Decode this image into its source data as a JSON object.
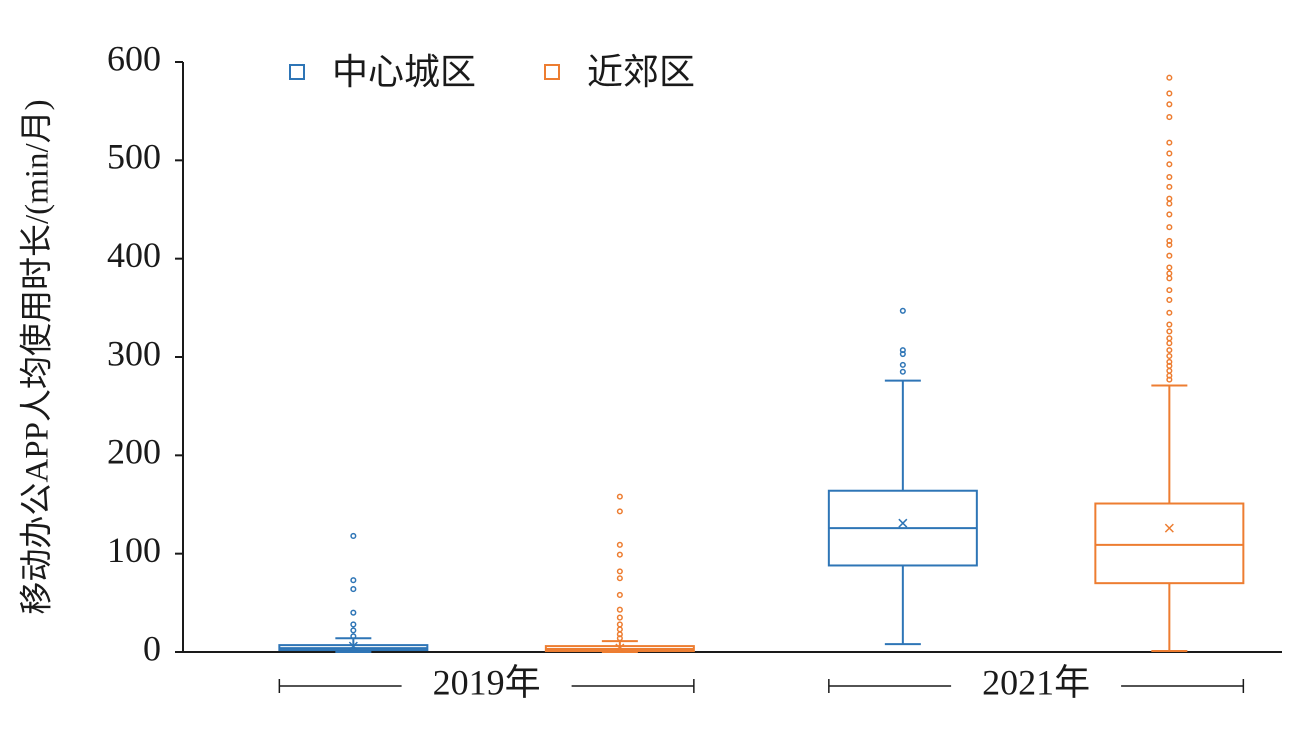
{
  "chart_data": {
    "type": "box",
    "y_label": "移动办公APP人均使用时长/(min/月)",
    "categories": [
      "2019年",
      "2021年"
    ],
    "ylim": [
      0,
      600
    ],
    "yticks": [
      0,
      100,
      200,
      300,
      400,
      500,
      600
    ],
    "legend": "top-left",
    "series": [
      {
        "name": "中心城区",
        "color": "#2e75b6",
        "boxes": [
          {
            "min": 0,
            "q1": 2,
            "median": 4,
            "q3": 7,
            "max": 14,
            "mean": 6,
            "outliers": [
              16,
              22,
              28,
              40,
              64,
              73,
              118
            ]
          },
          {
            "min": 8,
            "q1": 88,
            "median": 126,
            "q3": 164,
            "max": 276,
            "mean": 131,
            "outliers": [
              285,
              292,
              303,
              307,
              347
            ]
          }
        ]
      },
      {
        "name": "近郊区",
        "color": "#ed7d31",
        "boxes": [
          {
            "min": 0,
            "q1": 1,
            "median": 3,
            "q3": 6,
            "max": 11,
            "mean": 4,
            "outliers": [
              14,
              18,
              23,
              28,
              35,
              43,
              58,
              75,
              82,
              99,
              109,
              143,
              158
            ]
          },
          {
            "min": 1,
            "q1": 70,
            "median": 109,
            "q3": 151,
            "max": 271,
            "mean": 126,
            "outliers": [
              277,
              281,
              286,
              291,
              295,
              301,
              307,
              314,
              319,
              326,
              333,
              345,
              358,
              368,
              380,
              385,
              391,
              403,
              414,
              418,
              432,
              445,
              456,
              461,
              473,
              483,
              496,
              507,
              518,
              544,
              557,
              568,
              584
            ]
          }
        ]
      }
    ]
  }
}
